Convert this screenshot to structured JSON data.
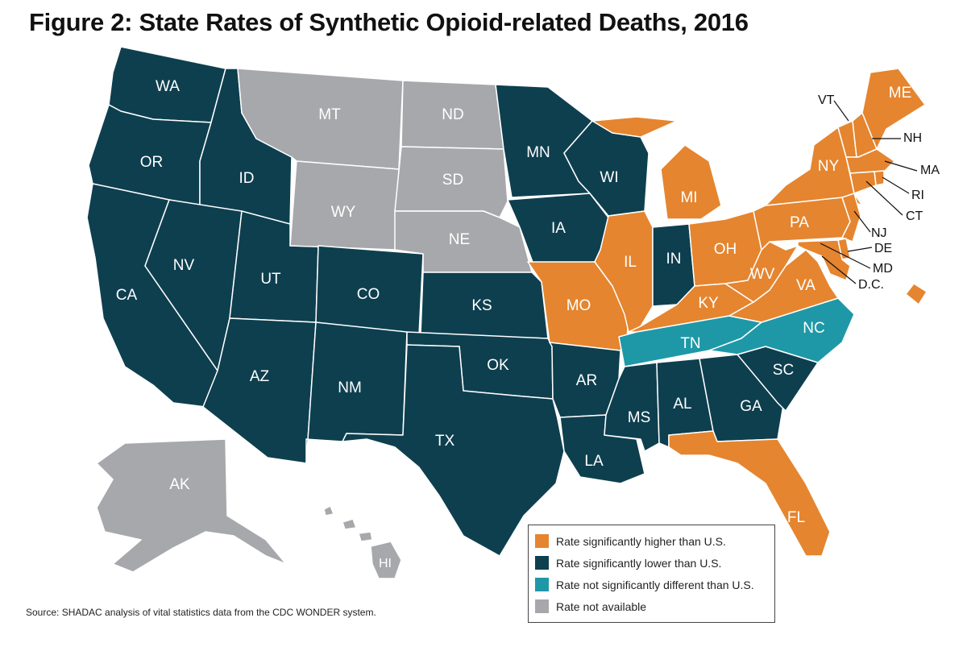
{
  "title": "Figure 2: State Rates of Synthetic Opioid-related Deaths, 2016",
  "colors": {
    "higher": "#E5852F",
    "lower": "#0E3F4F",
    "not_different": "#1E98A7",
    "not_available": "#A7A8AB"
  },
  "states": {
    "WA": {
      "label": "WA",
      "category": "lower"
    },
    "OR": {
      "label": "OR",
      "category": "lower"
    },
    "CA": {
      "label": "CA",
      "category": "lower"
    },
    "ID": {
      "label": "ID",
      "category": "lower"
    },
    "NV": {
      "label": "NV",
      "category": "lower"
    },
    "UT": {
      "label": "UT",
      "category": "lower"
    },
    "AZ": {
      "label": "AZ",
      "category": "lower"
    },
    "MT": {
      "label": "MT",
      "category": "not_available"
    },
    "WY": {
      "label": "WY",
      "category": "not_available"
    },
    "CO": {
      "label": "CO",
      "category": "lower"
    },
    "NM": {
      "label": "NM",
      "category": "lower"
    },
    "ND": {
      "label": "ND",
      "category": "not_available"
    },
    "SD": {
      "label": "SD",
      "category": "not_available"
    },
    "NE": {
      "label": "NE",
      "category": "not_available"
    },
    "KS": {
      "label": "KS",
      "category": "lower"
    },
    "OK": {
      "label": "OK",
      "category": "lower"
    },
    "TX": {
      "label": "TX",
      "category": "lower"
    },
    "MN": {
      "label": "MN",
      "category": "lower"
    },
    "IA": {
      "label": "IA",
      "category": "lower"
    },
    "MO": {
      "label": "MO",
      "category": "higher"
    },
    "AR": {
      "label": "AR",
      "category": "lower"
    },
    "LA": {
      "label": "LA",
      "category": "lower"
    },
    "WI": {
      "label": "WI",
      "category": "lower"
    },
    "IL": {
      "label": "IL",
      "category": "higher"
    },
    "MI": {
      "label": "MI",
      "category": "higher"
    },
    "IN": {
      "label": "IN",
      "category": "lower"
    },
    "OH": {
      "label": "OH",
      "category": "higher"
    },
    "KY": {
      "label": "KY",
      "category": "higher"
    },
    "TN": {
      "label": "TN",
      "category": "not_different"
    },
    "MS": {
      "label": "MS",
      "category": "lower"
    },
    "AL": {
      "label": "AL",
      "category": "lower"
    },
    "GA": {
      "label": "GA",
      "category": "lower"
    },
    "FL": {
      "label": "FL",
      "category": "higher"
    },
    "SC": {
      "label": "SC",
      "category": "lower"
    },
    "NC": {
      "label": "NC",
      "category": "not_different"
    },
    "VA": {
      "label": "VA",
      "category": "higher"
    },
    "WV": {
      "label": "WV",
      "category": "higher"
    },
    "PA": {
      "label": "PA",
      "category": "higher"
    },
    "NY": {
      "label": "NY",
      "category": "higher"
    },
    "VT": {
      "label": "VT",
      "category": "higher"
    },
    "NH": {
      "label": "NH",
      "category": "higher"
    },
    "ME": {
      "label": "ME",
      "category": "higher"
    },
    "MA": {
      "label": "MA",
      "category": "higher"
    },
    "RI": {
      "label": "RI",
      "category": "higher"
    },
    "CT": {
      "label": "CT",
      "category": "higher"
    },
    "NJ": {
      "label": "NJ",
      "category": "higher"
    },
    "DE": {
      "label": "DE",
      "category": "higher"
    },
    "MD": {
      "label": "MD",
      "category": "higher"
    },
    "DC": {
      "label": "D.C.",
      "category": "higher"
    },
    "AK": {
      "label": "AK",
      "category": "not_available"
    },
    "HI": {
      "label": "HI",
      "category": "not_available"
    }
  },
  "legend": {
    "items": [
      {
        "label": "Rate significantly higher than U.S.",
        "category": "higher"
      },
      {
        "label": "Rate significantly lower than U.S.",
        "category": "lower"
      },
      {
        "label": "Rate not significantly different than U.S.",
        "category": "not_different"
      },
      {
        "label": "Rate not available",
        "category": "not_available"
      }
    ]
  },
  "source": "Source: SHADAC analysis of vital statistics data from the CDC WONDER system."
}
